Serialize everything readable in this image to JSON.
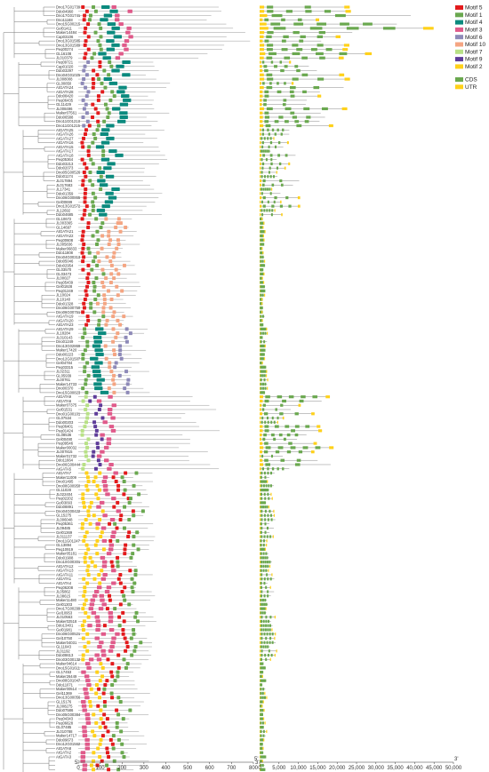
{
  "legend": {
    "motifs": [
      {
        "name": "Motif 5",
        "color": "#e31a1c"
      },
      {
        "name": "Motif 1",
        "color": "#6aa84f"
      },
      {
        "name": "Motif 4",
        "color": "#0b8a7e"
      },
      {
        "name": "Motif 3",
        "color": "#e05a8a"
      },
      {
        "name": "Motif 6",
        "color": "#8e8ab8"
      },
      {
        "name": "Motif 10",
        "color": "#f4a582"
      },
      {
        "name": "Motif 7",
        "color": "#b8e186"
      },
      {
        "name": "Motif 9",
        "color": "#5e3c99"
      },
      {
        "name": "Motif 2",
        "color": "#ffd11a"
      }
    ],
    "gene": [
      {
        "name": "CDS",
        "color": "#6aa84f"
      },
      {
        "name": "UTR",
        "color": "#ffd11a"
      }
    ]
  },
  "axes": {
    "protein": {
      "start_label": "5'",
      "end_label": "3'",
      "ticks": [
        0,
        100,
        200,
        300,
        400,
        500,
        600,
        700,
        800
      ]
    },
    "gene": {
      "start_label": "5'",
      "end_label": "3'",
      "ticks": [
        "0",
        "5,000",
        "10,000",
        "15,000",
        "20,000",
        "25,000",
        "30,000",
        "35,000",
        "40,000",
        "45,000",
        "50,000"
      ]
    }
  },
  "genes": [
    "Dno17G01739",
    "Ddo04960",
    "Dno17G01741",
    "Dno11168",
    "Dno15G00215",
    "Gel01411",
    "Maker14484",
    "Cap03106",
    "Dno13G01585",
    "Dno13G01589",
    "Peq00274",
    "GL16108",
    "JL010379",
    "Peq09721",
    "Cap01020",
    "Ddo03297",
    "Dno04G01025",
    "JL008008",
    "GL00850",
    "AtGATA24",
    "AtGATA28",
    "Ddo08420",
    "Peq06435",
    "GL11429",
    "JL008496",
    "Maker07561",
    "Ddo06588",
    "Dno11G01213",
    "Dno11G01215",
    "AtGATA25",
    "AtGATA26",
    "AtGATA27",
    "AtGATA16",
    "AtGATA15",
    "AtGATA17",
    "AtGATA18",
    "Peq05364",
    "Ddo03213",
    "Ddo02073",
    "Dno05G00526",
    "Ddo01174",
    "JL017894",
    "JL017683",
    "JL17341",
    "Ddo01359",
    "Dno06G00865",
    "Gel00699",
    "Dno13G01572",
    "JL12692",
    "Ddo04685",
    "GL10672",
    "JL003365",
    "GL14697",
    "AtGATA21",
    "AtGATA22",
    "Peq00608",
    "JL005836",
    "Maker06833",
    "Ddo11808",
    "Dno04G00313",
    "Ddo05046",
    "Ddo02954",
    "GL03570",
    "GL03473",
    "JL00027",
    "Peq05439",
    "Gel01928",
    "Peq01249",
    "JL10024",
    "JL10140",
    "Ddo01328",
    "Dno06G00750",
    "Dno06G00751",
    "AtGATA19",
    "AtGATA20",
    "AtGATA23",
    "AtGATA29",
    "JL18284",
    "JL010143",
    "Dno01249",
    "Dno13G02869",
    "Maker17420",
    "Ddo00223",
    "Dno12G01507",
    "Gel04784",
    "Peq03315",
    "JL02311",
    "GL05939",
    "JL00761",
    "Maker14733",
    "Dno00370",
    "Dno15G00823",
    "AtGATA9",
    "AtGATA6",
    "Maker07375",
    "Gel01531",
    "Dno01G00101",
    "GL07534",
    "Ddo00203",
    "Peq06401",
    "Peq01424",
    "GL08536",
    "Gel00490",
    "Peq09546",
    "Maker00032",
    "JL007815",
    "Maker01732",
    "Ddo11664",
    "Dno06G00444",
    "AtGATA5",
    "AtGATA7",
    "Maker11009",
    "Dno01495",
    "Dno08G00950",
    "GL11028",
    "JL022404",
    "Peq02202",
    "Gel03093",
    "Ddo08891",
    "Dno04G00422",
    "GL15275",
    "JL006048",
    "Peq05361",
    "JL09485",
    "Gel01369",
    "JL011137",
    "Dno11G01247",
    "GL13894",
    "Peq10919",
    "Maker05181",
    "Ddo01908",
    "Dno10G00301",
    "AtGATA12",
    "AtGATA13",
    "AtGATA11",
    "AtGATA1",
    "AtGATA4",
    "Peq06208",
    "JL05862",
    "JL08615",
    "Maker11480",
    "Gel01303",
    "Dno17G00299",
    "Gel10953",
    "JL010563",
    "Maker02518",
    "Ddo13401",
    "Gel01981",
    "Dno06G00521",
    "Gel10750",
    "Maker04031",
    "GL11043",
    "JL01192",
    "Ddo08613",
    "Dno03G00132",
    "Maker04614",
    "Dno15G01611",
    "GL17453",
    "Maker26449",
    "Dno08G01047",
    "Ddo11071",
    "Maker00514",
    "Gel11369",
    "Dno13G00056",
    "GL15176",
    "JL008275",
    "Ddo07586",
    "Dno05G00384",
    "Peq04343",
    "Peq06628",
    "GL07485",
    "JL010788",
    "Maker14717",
    "Ddo09673",
    "Dno12G01562",
    "AtGATA8",
    "AtGATA2",
    "AtGATA3"
  ]
}
